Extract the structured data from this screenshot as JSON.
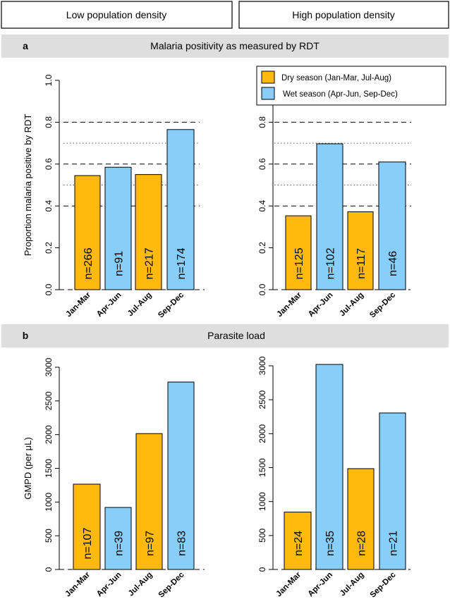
{
  "headers": {
    "left": "Low population density",
    "right": "High population density"
  },
  "sections": {
    "a": {
      "letter": "a",
      "title": "Malaria positivity as measured by RDT"
    },
    "b": {
      "letter": "b",
      "title": "Parasite load"
    }
  },
  "legend": {
    "dry": "Dry season (Jan-Mar, Jul-Aug)",
    "wet": "Wet season (Apr-Jun, Sep-Dec)"
  },
  "colors": {
    "dry": "#FFB90F",
    "wet": "#87CEFA",
    "band": "#DEDEDE",
    "outline": "#000000"
  },
  "chart_data": [
    {
      "id": "a-low",
      "type": "bar",
      "panel": "a",
      "density": "Low population density",
      "title": "Malaria positivity as measured by RDT",
      "ylabel": "Proportion malaria positive by RDT",
      "categories": [
        "Jan-Mar",
        "Apr-Jun",
        "Jul-Aug",
        "Sep-Dec"
      ],
      "values": [
        0.545,
        0.585,
        0.55,
        0.765
      ],
      "seasons": [
        "dry",
        "wet",
        "dry",
        "wet"
      ],
      "labels": [
        "n=266",
        "n=91",
        "n=217",
        "n=174"
      ],
      "ylim": [
        0,
        1.0
      ],
      "yticks": [
        "0.0",
        "0.2",
        "0.4",
        "0.6",
        "0.8",
        "1.0"
      ],
      "dashed_lines": [
        0.4,
        0.6,
        0.8
      ],
      "dotted_lines": [
        0.5,
        0.7
      ]
    },
    {
      "id": "a-high",
      "type": "bar",
      "panel": "a",
      "density": "High population density",
      "title": "Malaria positivity as measured by RDT",
      "ylabel": "",
      "categories": [
        "Jan-Mar",
        "Apr-Jun",
        "Jul-Aug",
        "Sep-Dec"
      ],
      "values": [
        0.353,
        0.697,
        0.372,
        0.61
      ],
      "seasons": [
        "dry",
        "wet",
        "dry",
        "wet"
      ],
      "labels": [
        "n=125",
        "n=102",
        "n=117",
        "n=46"
      ],
      "ylim": [
        0,
        1.0
      ],
      "yticks": [
        "0.0",
        "0.2",
        "0.4",
        "0.6",
        "0.8",
        "1.0"
      ],
      "dashed_lines": [
        0.4,
        0.6,
        0.8
      ],
      "dotted_lines": [
        0.5,
        0.7
      ]
    },
    {
      "id": "b-low",
      "type": "bar",
      "panel": "b",
      "density": "Low population density",
      "title": "Parasite load",
      "ylabel": "GMPD (per μL)",
      "categories": [
        "Jan-Mar",
        "Apr-Jun",
        "Jul-Aug",
        "Sep-Dec"
      ],
      "values": [
        1265,
        920,
        2015,
        2780
      ],
      "seasons": [
        "dry",
        "wet",
        "dry",
        "wet"
      ],
      "labels": [
        "n=107",
        "n=39",
        "n=97",
        "n=83"
      ],
      "ylim": [
        0,
        3000
      ],
      "yticks": [
        "0",
        "500",
        "1000",
        "1500",
        "2000",
        "2500",
        "3000"
      ],
      "dashed_lines": [],
      "dotted_lines": []
    },
    {
      "id": "b-high",
      "type": "bar",
      "panel": "b",
      "density": "High population density",
      "title": "Parasite load",
      "ylabel": "",
      "categories": [
        "Jan-Mar",
        "Apr-Jun",
        "Jul-Aug",
        "Sep-Dec"
      ],
      "values": [
        845,
        3020,
        1485,
        2305
      ],
      "seasons": [
        "dry",
        "wet",
        "dry",
        "wet"
      ],
      "labels": [
        "n=24",
        "n=35",
        "n=28",
        "n=21"
      ],
      "ylim": [
        0,
        3000
      ],
      "yticks": [
        "0",
        "500",
        "1000",
        "1500",
        "2000",
        "2500",
        "3000"
      ],
      "dashed_lines": [],
      "dotted_lines": []
    }
  ]
}
